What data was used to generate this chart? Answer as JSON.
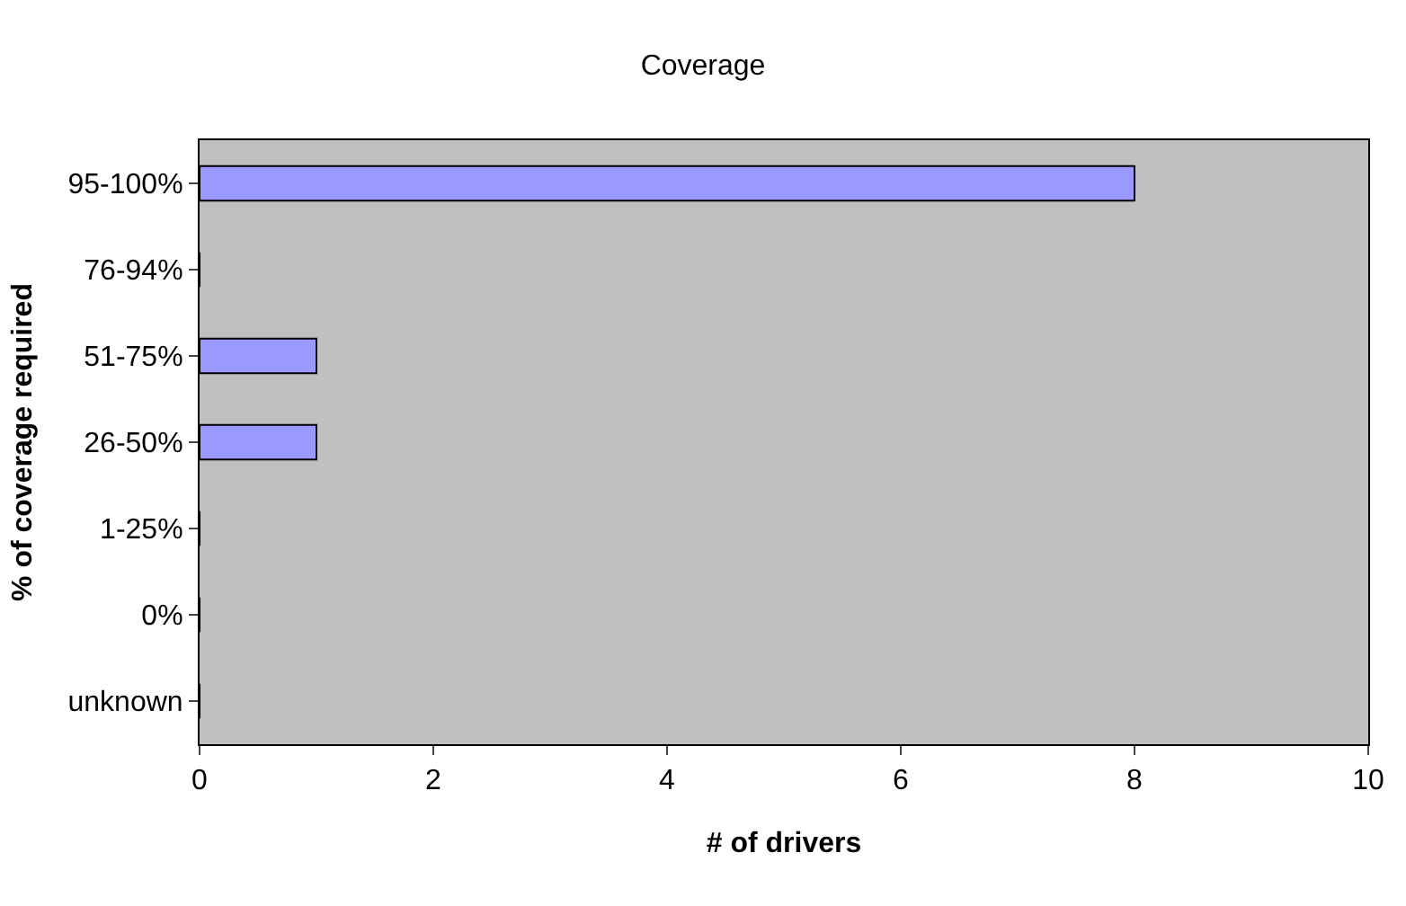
{
  "chart_data": {
    "type": "bar",
    "orientation": "horizontal",
    "title": "Coverage",
    "xlabel": "# of drivers",
    "ylabel": "% of coverage required",
    "categories": [
      "95-100%",
      "76-94%",
      "51-75%",
      "26-50%",
      "1-25%",
      "0%",
      "unknown"
    ],
    "values": [
      8,
      0,
      1,
      1,
      0,
      0,
      0
    ],
    "color": "#9999ff",
    "xlim": [
      0,
      10
    ],
    "xticks": [
      0,
      2,
      4,
      6,
      8,
      10
    ],
    "grid": false,
    "legend": false
  }
}
